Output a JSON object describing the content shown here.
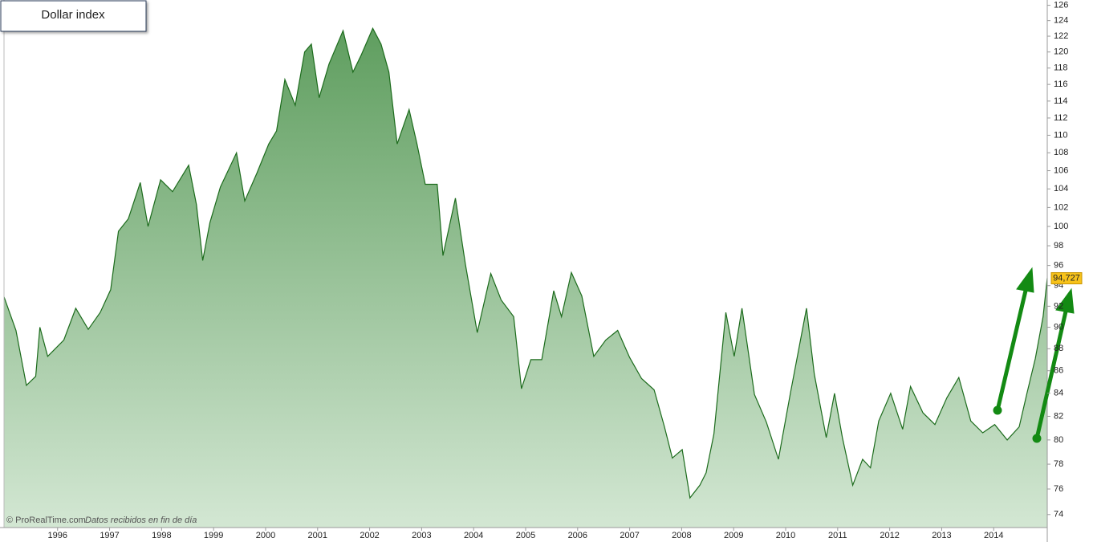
{
  "chart_data": {
    "type": "area",
    "title": "Dollar index",
    "footer_source": "© ProRealTime.com",
    "footer_note": "Datos recibidos en fin de día",
    "x": [
      1994.97,
      1995.2,
      1995.4,
      1995.58,
      1995.66,
      1995.81,
      1996.12,
      1996.35,
      1996.59,
      1996.82,
      1997.02,
      1997.17,
      1997.36,
      1997.59,
      1997.74,
      1997.98,
      1998.21,
      1998.52,
      1998.67,
      1998.79,
      1998.93,
      1999.13,
      1999.44,
      1999.6,
      1999.83,
      2000.06,
      2000.21,
      2000.37,
      2000.57,
      2000.75,
      2000.88,
      2001.03,
      2001.22,
      2001.49,
      2001.68,
      2001.83,
      2002.06,
      2002.22,
      2002.37,
      2002.53,
      2002.76,
      2002.91,
      2003.07,
      2003.3,
      2003.41,
      2003.65,
      2003.84,
      2004.07,
      2004.33,
      2004.53,
      2004.77,
      2004.92,
      2005.1,
      2005.31,
      2005.54,
      2005.69,
      2005.88,
      2006.08,
      2006.31,
      2006.54,
      2006.77,
      2007.0,
      2007.23,
      2007.47,
      2007.67,
      2007.82,
      2008.01,
      2008.16,
      2008.35,
      2008.47,
      2008.62,
      2008.85,
      2009.01,
      2009.16,
      2009.4,
      2009.63,
      2009.86,
      2010.09,
      2010.4,
      2010.55,
      2010.78,
      2010.94,
      2011.09,
      2011.29,
      2011.48,
      2011.63,
      2011.79,
      2012.02,
      2012.25,
      2012.4,
      2012.64,
      2012.87,
      2013.1,
      2013.33,
      2013.56,
      2013.79,
      2014.02,
      2014.26,
      2014.49,
      2014.64,
      2014.8,
      2014.95,
      2015.03
    ],
    "values": [
      92.9,
      89.7,
      84.7,
      85.5,
      90,
      87.3,
      88.8,
      91.8,
      89.8,
      91.4,
      93.6,
      99.5,
      100.8,
      104.7,
      100,
      105,
      103.7,
      106.6,
      102.3,
      96.5,
      100.4,
      104.2,
      108,
      102.7,
      105.7,
      109,
      110.5,
      116.6,
      113.5,
      120,
      121,
      114.4,
      118.5,
      122.7,
      117.5,
      119.5,
      123,
      121,
      117.5,
      109,
      113,
      109,
      104.5,
      104.5,
      97,
      103,
      96.2,
      89.5,
      95.2,
      92.6,
      91,
      84.4,
      87,
      87,
      93.5,
      91,
      95.3,
      93,
      87.3,
      88.8,
      89.7,
      87.2,
      85.3,
      84.3,
      81.1,
      78.5,
      79.2,
      75.3,
      76.3,
      77.3,
      80.5,
      91.4,
      87.3,
      91.8,
      83.9,
      81.5,
      78.4,
      84,
      91.8,
      85.7,
      80.2,
      84,
      80.2,
      76.3,
      78.4,
      77.7,
      81.6,
      84,
      80.9,
      84.6,
      82.3,
      81.3,
      83.6,
      85.4,
      81.6,
      80.6,
      81.3,
      80,
      81.1,
      84,
      87.1,
      91,
      94.727
    ],
    "last_label": {
      "value": 94.727,
      "label": "94,727"
    },
    "color": "#1c6b1c",
    "xlim": [
      1994.97,
      2015.03
    ],
    "xticks": [
      1996,
      1997,
      1998,
      1999,
      2000,
      2001,
      2002,
      2003,
      2004,
      2005,
      2006,
      2007,
      2008,
      2009,
      2010,
      2011,
      2012,
      2013,
      2014
    ],
    "ylim": [
      73,
      126.7
    ],
    "log_y": true,
    "yticks": [
      74,
      76,
      78,
      80,
      82,
      84,
      86,
      88,
      90,
      92,
      94,
      96,
      98,
      100,
      102,
      104,
      106,
      108,
      110,
      112,
      114,
      116,
      118,
      120,
      122,
      124,
      126
    ]
  }
}
